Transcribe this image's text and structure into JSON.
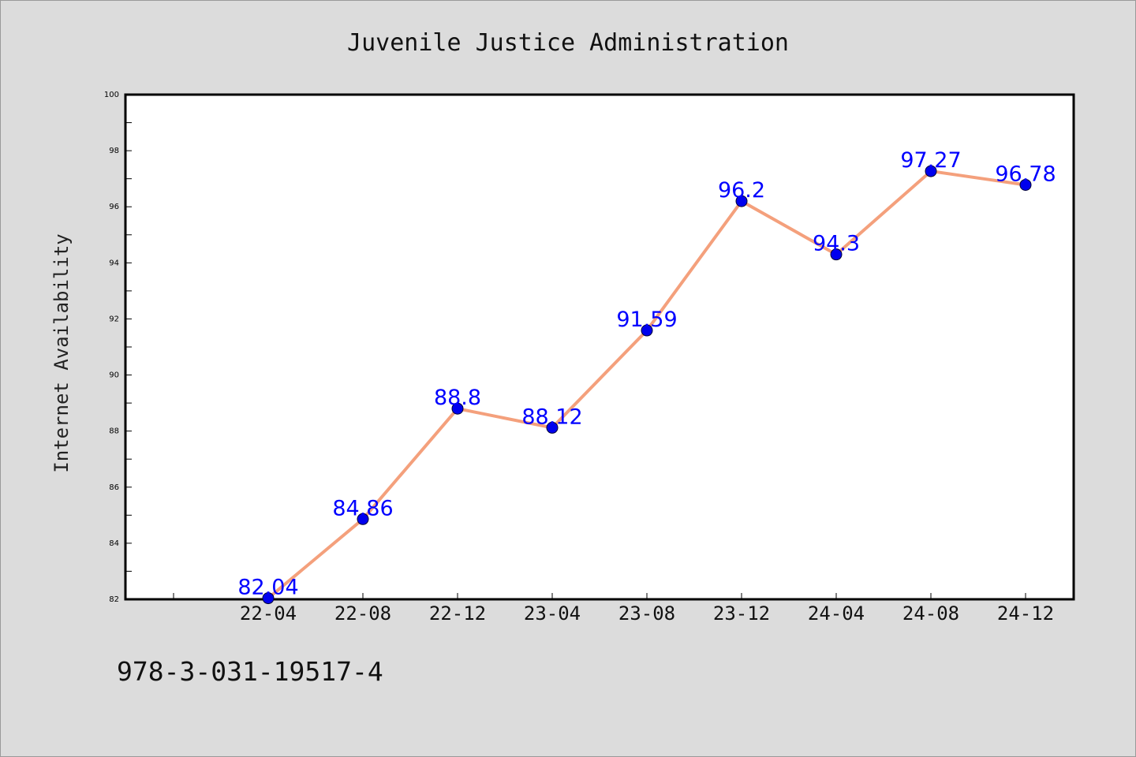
{
  "chart_data": {
    "type": "line",
    "title": "Juvenile Justice Administration",
    "xlabel": "",
    "ylabel": "Internet Availability",
    "categories": [
      "22-04",
      "22-08",
      "22-12",
      "23-04",
      "23-08",
      "23-12",
      "24-04",
      "24-08",
      "24-12"
    ],
    "series": [
      {
        "values": [
          82.04,
          84.86,
          88.8,
          88.12,
          91.59,
          96.2,
          94.3,
          97.27,
          96.78
        ]
      }
    ],
    "ylim": [
      82,
      100
    ],
    "yticks": [
      82,
      84,
      86,
      88,
      90,
      92,
      94,
      96,
      98,
      100
    ],
    "grid": false,
    "legend": "none",
    "colors": {
      "line": "#f4a07c",
      "marker": "#0000ee",
      "data_label": "#0000ff",
      "background": "#dcdcdc",
      "plot_background": "#ffffff"
    }
  },
  "footer": {
    "code": "978-3-031-19517-4"
  }
}
